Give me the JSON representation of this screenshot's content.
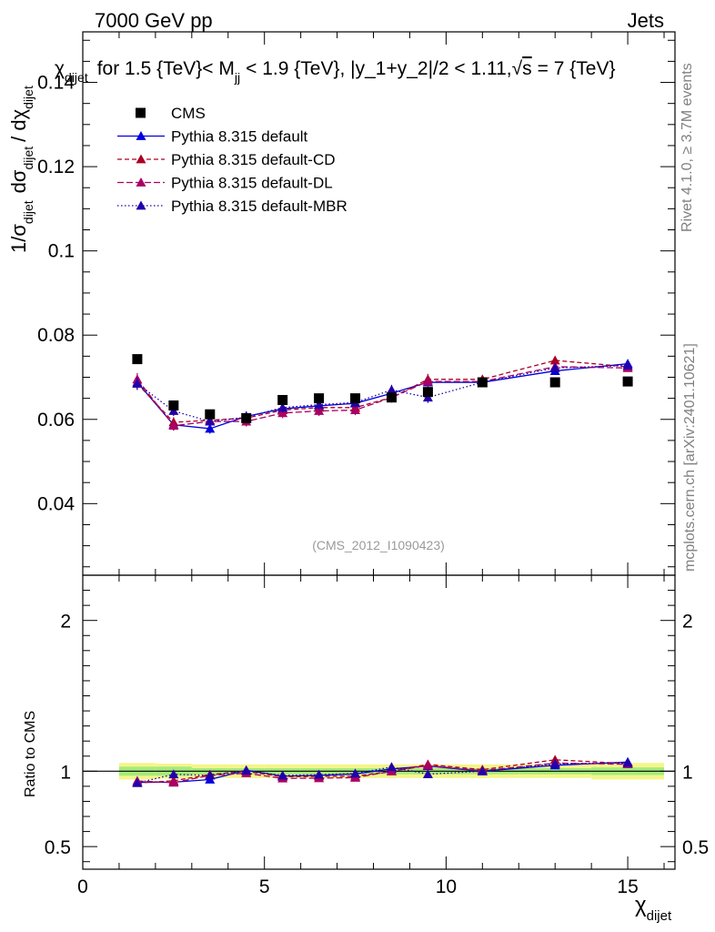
{
  "header": {
    "left": "7000 GeV pp",
    "right": "Jets"
  },
  "side_labels": {
    "rivet": "Rivet 4.1.0, ≥ 3.7M events",
    "mcplots": "mcplots.cern.ch [arXiv:2401.10621]"
  },
  "chart_data": {
    "type": "scatter",
    "title": "χ_dijet for 1.5 {TeV}< M_jj < 1.9 {TeV}, |y_1+y_2|/2 < 1.11, √s = 7 {TeV}",
    "title_parts": {
      "chi": "χ",
      "chi_sub": "dijet",
      "text1": "for 1.5 {TeV}< M",
      "m_sub": "jj",
      "text2": "< 1.9 {TeV}, |y_1+y_2|/2 < 1.11,",
      "sqrt": "√",
      "s": "s",
      "text3": "= 7 {TeV}"
    },
    "watermark": "(CMS_2012_I1090423)",
    "ylabel_main": "1/σ_dijet dσ_dijet / dχ_dijet",
    "ylabel_parts": {
      "a": "1/σ",
      "a_sub": "dijet",
      "b": "dσ",
      "b_sub": "dijet",
      "c": "/ dχ",
      "c_sub": "dijet"
    },
    "ylabel_ratio": "Ratio to CMS",
    "xlabel": "χ",
    "xlabel_sub": "dijet",
    "xlim": [
      0,
      16.3
    ],
    "ylim_main": [
      0.023,
      0.152
    ],
    "ylim_ratio": [
      0.35,
      2.3
    ],
    "xticks": [
      0,
      5,
      10,
      15
    ],
    "yticks_main": [
      0.04,
      0.06,
      0.08,
      0.1,
      0.12,
      0.14
    ],
    "yticks_main_labels": [
      "0.04",
      "0.06",
      "0.08",
      "0.1",
      "0.12",
      "0.14"
    ],
    "yticks_ratio": [
      0.5,
      1,
      2
    ],
    "yticks_ratio_labels": [
      "0.5",
      "1",
      "2"
    ],
    "data": {
      "name": "CMS",
      "x": [
        1.5,
        2.5,
        3.5,
        4.5,
        5.5,
        6.5,
        7.5,
        8.5,
        9.5,
        11,
        13,
        15
      ],
      "xerr": [
        0.5,
        0.5,
        0.5,
        0.5,
        0.5,
        0.5,
        0.5,
        0.5,
        0.5,
        1,
        1,
        1
      ],
      "y": [
        0.0743,
        0.0633,
        0.0612,
        0.0603,
        0.0646,
        0.065,
        0.065,
        0.0652,
        0.0665,
        0.0688,
        0.0688,
        0.069
      ],
      "ratio_band_stat": [
        0.97,
        0.97,
        0.98,
        0.98,
        0.98,
        0.98,
        0.98,
        0.98,
        0.98,
        0.98,
        0.98,
        0.975
      ],
      "ratio_band_tot": [
        0.945,
        0.95,
        0.955,
        0.955,
        0.955,
        0.955,
        0.955,
        0.955,
        0.955,
        0.955,
        0.955,
        0.945
      ]
    },
    "series": [
      {
        "name": "Pythia 8.315 default",
        "color": "#0000dd",
        "dash": "",
        "y": [
          0.0688,
          0.0587,
          0.0578,
          0.0607,
          0.0625,
          0.0632,
          0.0638,
          0.0662,
          0.0688,
          0.0688,
          0.0715,
          0.0732
        ],
        "err": [
          0.0015,
          0.0012,
          0.0012,
          0.0012,
          0.0012,
          0.0012,
          0.0012,
          0.0012,
          0.0013,
          0.0009,
          0.0009,
          0.0009
        ]
      },
      {
        "name": "Pythia 8.315 default-CD",
        "color": "#aa0022",
        "dash": "5,3",
        "y": [
          0.0685,
          0.0593,
          0.0598,
          0.0603,
          0.0622,
          0.0628,
          0.0628,
          0.0652,
          0.0695,
          0.0695,
          0.074,
          0.0725
        ],
        "err": [
          0.0015,
          0.0012,
          0.0012,
          0.0012,
          0.0012,
          0.0012,
          0.0012,
          0.0012,
          0.0013,
          0.0009,
          0.0009,
          0.0009
        ]
      },
      {
        "name": "Pythia 8.315 default-DL",
        "color": "#aa0066",
        "dash": "7,3",
        "y": [
          0.0695,
          0.0585,
          0.0595,
          0.0595,
          0.0615,
          0.062,
          0.0622,
          0.0652,
          0.069,
          0.069,
          0.0725,
          0.0722
        ],
        "err": [
          0.0015,
          0.0012,
          0.0012,
          0.0012,
          0.0012,
          0.0012,
          0.0012,
          0.0012,
          0.0013,
          0.0009,
          0.0009,
          0.0009
        ]
      },
      {
        "name": "Pythia 8.315 default-MBR",
        "color": "#2200aa",
        "dash": "1.5,2.5",
        "y": [
          0.0685,
          0.062,
          0.0595,
          0.0605,
          0.0628,
          0.0635,
          0.064,
          0.067,
          0.0652,
          0.0688,
          0.0722,
          0.0728
        ],
        "err": [
          0.0015,
          0.0012,
          0.0012,
          0.0012,
          0.0012,
          0.0012,
          0.0012,
          0.0012,
          0.0013,
          0.0009,
          0.0009,
          0.0009
        ]
      }
    ],
    "legend_position": "top-left"
  }
}
